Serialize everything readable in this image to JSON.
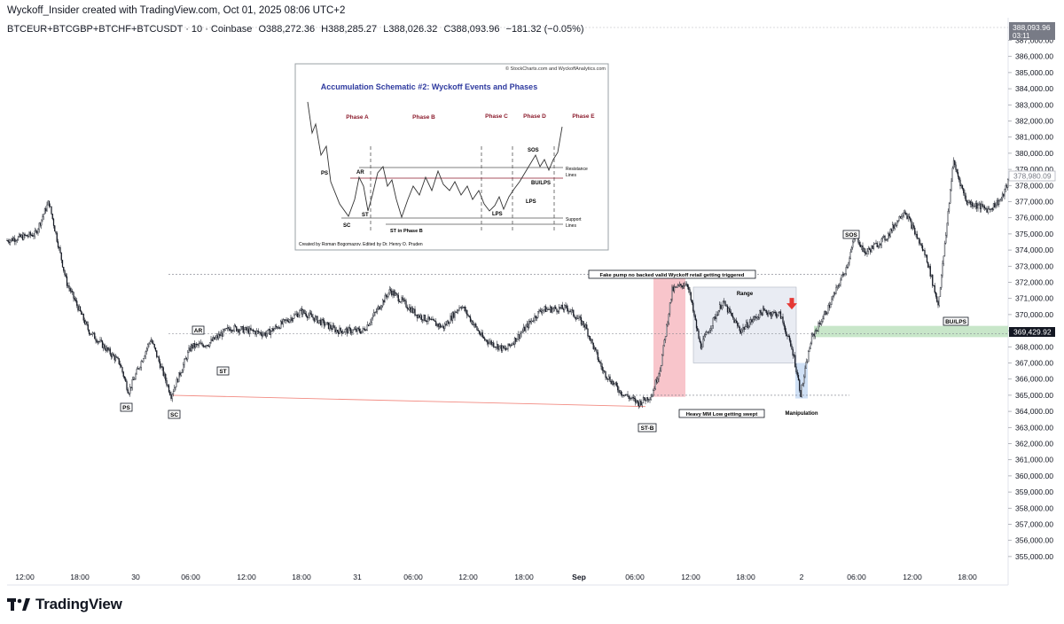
{
  "header": {
    "attribution": "Wyckoff_Insider created with TradingView.com, Oct 01, 2025 08:06 UTC+2",
    "symbol": "BTCEUR+BTCGBP+BTCHF+BTCUSDT · 10 · Coinbase",
    "open": "O388,272.36",
    "high": "H388,285.27",
    "low": "L388,026.32",
    "close": "C388,093.96",
    "change": "−181.32 (−0.05%)"
  },
  "brand": {
    "logo_text": "TradingView"
  },
  "price_badges": {
    "top_price": "388,093.96",
    "top_countdown": "03:11",
    "mid_price": "378,980.09",
    "last_price": "369,429.92"
  },
  "colors": {
    "candle": "#131722",
    "pink_zone": "#f8c5cb",
    "range_box": "#e9ecf3",
    "green_zone": "#c8e6c9",
    "blue_zone": "#cfe0f5",
    "red_line": "#f28b82",
    "red_arrow": "#e53935"
  },
  "chart_data": {
    "type": "candlestick",
    "x_ticks": [
      "12:00",
      "18:00",
      "30",
      "06:00",
      "12:00",
      "18:00",
      "31",
      "06:00",
      "12:00",
      "18:00",
      "Sep",
      "06:00",
      "12:00",
      "18:00",
      "2",
      "06:00",
      "12:00",
      "18:00"
    ],
    "y_ticks": [
      "387,000.00",
      "386,000.00",
      "385,000.00",
      "384,000.00",
      "383,000.00",
      "382,000.00",
      "381,000.00",
      "380,000.00",
      "379,000.00",
      "378,000.00",
      "377,000.00",
      "376,000.00",
      "375,000.00",
      "374,000.00",
      "373,000.00",
      "372,000.00",
      "371,000.00",
      "370,000.00",
      "369,000.00",
      "368,000.00",
      "367,000.00",
      "366,000.00",
      "365,000.00",
      "364,000.00",
      "363,000.00",
      "362,000.00",
      "361,000.00",
      "360,000.00",
      "359,000.00",
      "358,000.00",
      "357,000.00",
      "356,000.00",
      "355,000.00"
    ],
    "ylim": [
      355000,
      388500
    ],
    "price_path": [
      [
        0,
        374500
      ],
      [
        40,
        375000
      ],
      [
        55,
        377000
      ],
      [
        75,
        372000
      ],
      [
        100,
        369000
      ],
      [
        135,
        367000
      ],
      [
        145,
        365200
      ],
      [
        170,
        368500
      ],
      [
        193,
        365000
      ],
      [
        215,
        368000
      ],
      [
        235,
        368200
      ],
      [
        260,
        369200
      ],
      [
        300,
        368800
      ],
      [
        340,
        370200
      ],
      [
        380,
        369000
      ],
      [
        410,
        369000
      ],
      [
        440,
        371500
      ],
      [
        470,
        370000
      ],
      [
        500,
        369200
      ],
      [
        520,
        370600
      ],
      [
        545,
        368500
      ],
      [
        570,
        367800
      ],
      [
        590,
        369000
      ],
      [
        610,
        370300
      ],
      [
        640,
        370400
      ],
      [
        660,
        369300
      ],
      [
        680,
        366500
      ],
      [
        700,
        365200
      ],
      [
        720,
        364500
      ],
      [
        735,
        365000
      ],
      [
        745,
        366800
      ],
      [
        758,
        371500
      ],
      [
        775,
        372000
      ],
      [
        790,
        368000
      ],
      [
        815,
        370800
      ],
      [
        835,
        369000
      ],
      [
        860,
        370200
      ],
      [
        880,
        370000
      ],
      [
        895,
        367500
      ],
      [
        903,
        365100
      ],
      [
        915,
        368500
      ],
      [
        935,
        370500
      ],
      [
        955,
        373000
      ],
      [
        965,
        375000
      ],
      [
        975,
        373800
      ],
      [
        1000,
        374800
      ],
      [
        1020,
        376500
      ],
      [
        1045,
        373500
      ],
      [
        1058,
        370600
      ],
      [
        1065,
        374000
      ],
      [
        1075,
        379500
      ],
      [
        1090,
        377000
      ],
      [
        1115,
        376500
      ],
      [
        1130,
        377200
      ],
      [
        1138,
        378400
      ]
    ],
    "annotations": {
      "ps": "PS",
      "sc": "SC",
      "ar": "AR",
      "st": "ST",
      "stb": "ST-B",
      "sos": "SOS",
      "bulps": "BU/LPS",
      "fake_pump": "Fake pump no backed valid Wyckoff retail getting triggered",
      "range": "Range",
      "heavy_mm": "Heavy MM Low getting swept",
      "manipulation": "Manipulation"
    },
    "inset": {
      "credit": "© StockCharts.com and WyckoffAnalytics.com",
      "title": "Accumulation Schematic #2: Wyckoff Events and Phases",
      "phases": [
        "Phase A",
        "Phase B",
        "Phase C",
        "Phase D",
        "Phase E"
      ],
      "labels": {
        "ps": "PS",
        "sc": "SC",
        "ar": "AR",
        "st": "ST",
        "st_b": "ST in Phase B",
        "lps1": "LPS",
        "lps2": "LPS",
        "sos": "SOS",
        "bulps": "BU/LPS",
        "resistance": "Resistance",
        "resistance2": "Lines",
        "support": "Support",
        "support2": "Lines"
      },
      "footer": "Created by Roman Bogomazov. Edited by Dr. Henry O. Pruden"
    }
  }
}
